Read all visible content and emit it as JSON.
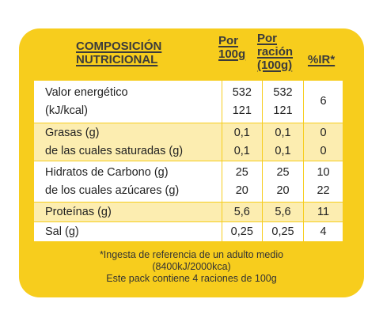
{
  "header": {
    "title_line1": "COMPOSICIÓN",
    "title_line2": "NUTRICIONAL",
    "col_per100_line1": "Por",
    "col_per100_line2": "100g",
    "col_portion_line1": "Por",
    "col_portion_line2": "ración",
    "col_portion_line3": "(100g)",
    "col_ir": "%IR*"
  },
  "rows": [
    {
      "label_line1": "Valor energético",
      "label_line2": "(kJ/kcal)",
      "per100_line1": "532",
      "per100_line2": "121",
      "portion_line1": "532",
      "portion_line2": "121",
      "ir": "6"
    },
    {
      "label_line1": "Grasas (g)",
      "label_line2": "de las cuales saturadas (g)",
      "per100_line1": "0,1",
      "per100_line2": "0,1",
      "portion_line1": "0,1",
      "portion_line2": "0,1",
      "ir_line1": "0",
      "ir_line2": "0"
    },
    {
      "label_line1": "Hidratos de Carbono (g)",
      "label_line2": "de los cuales azúcares (g)",
      "per100_line1": "25",
      "per100_line2": "20",
      "portion_line1": "25",
      "portion_line2": "20",
      "ir_line1": "10",
      "ir_line2": "22"
    },
    {
      "label": "Proteínas (g)",
      "per100": "5,6",
      "portion": "5,6",
      "ir": "11"
    },
    {
      "label": "Sal (g)",
      "per100": "0,25",
      "portion": "0,25",
      "ir": "4"
    }
  ],
  "footnote": {
    "line1": "*Ingesta de referencia de un adulto medio",
    "line2": "(8400kJ/2000kca)",
    "line3": "Este pack contiene 4 raciones de 100g"
  },
  "colors": {
    "panel": "#f7cd1d",
    "row_white": "#ffffff",
    "row_cream": "#fcedb0"
  }
}
